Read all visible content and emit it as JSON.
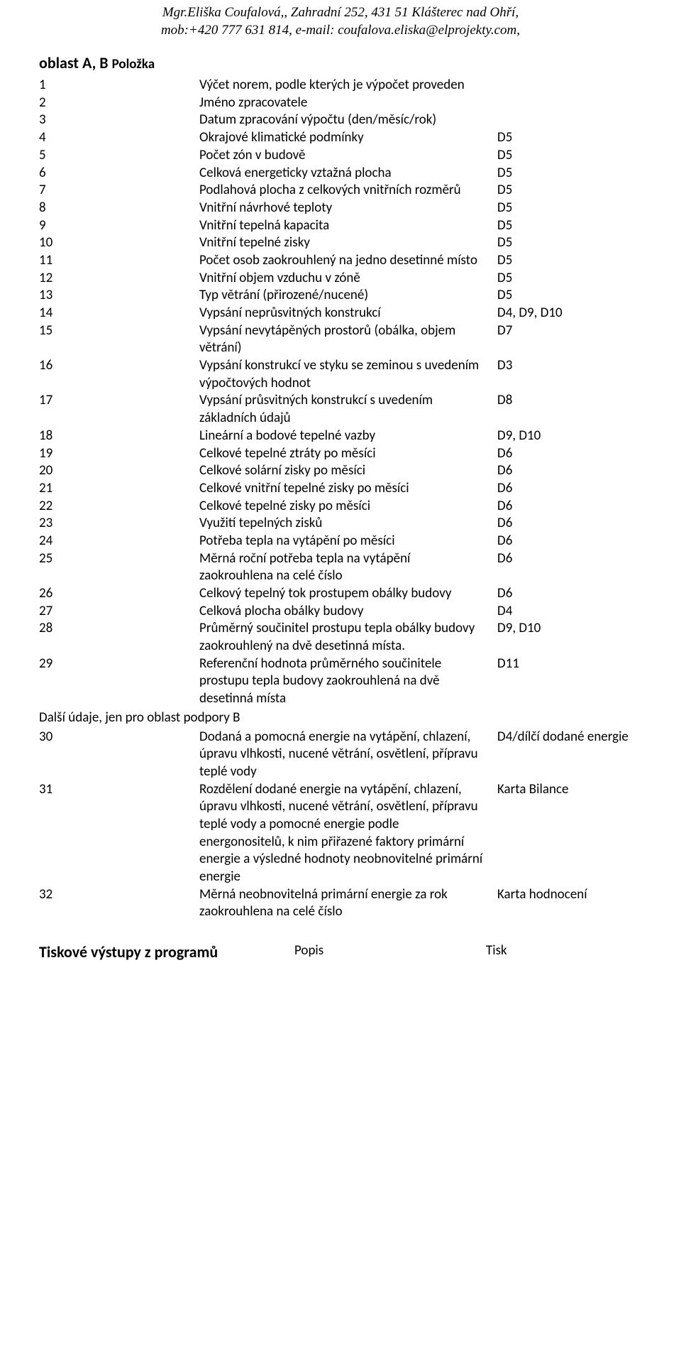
{
  "header": {
    "line1": "Mgr.Eliška Coufalová,, Zahradní 252, 431 51 Klášterec nad Ohří,",
    "line2": "mob:+420 777 631 814, e-mail: coufalova.eliska@elprojekty.com,"
  },
  "section": {
    "prefix": "oblast A, B ",
    "polozka": "Položka"
  },
  "rows": [
    {
      "n": "1",
      "d": "Výčet norem, podle kterých je výpočet proveden",
      "t": ""
    },
    {
      "n": "2",
      "d": "Jméno zpracovatele",
      "t": ""
    },
    {
      "n": "3",
      "d": "Datum zpracování výpočtu (den/měsíc/rok)",
      "t": ""
    },
    {
      "n": "4",
      "d": "Okrajové klimatické podmínky",
      "t": "D5"
    },
    {
      "n": "5",
      "d": "Počet zón v budově",
      "t": "D5"
    },
    {
      "n": "6",
      "d": "Celková energeticky vztažná plocha",
      "t": "D5"
    },
    {
      "n": "7",
      "d": "Podlahová plocha z celkových vnitřních rozměrů",
      "t": "D5"
    },
    {
      "n": "8",
      "d": "Vnitřní návrhové teploty",
      "t": "D5"
    },
    {
      "n": "9",
      "d": "Vnitřní tepelná kapacita",
      "t": "D5"
    },
    {
      "n": "10",
      "d": "Vnitřní tepelné zisky",
      "t": "D5"
    },
    {
      "n": "11",
      "d": "Počet osob zaokrouhlený na jedno desetinné místo",
      "t": "D5"
    },
    {
      "n": "12",
      "d": "Vnitřní objem vzduchu v zóně",
      "t": "D5"
    },
    {
      "n": "13",
      "d": "Typ větrání (přirozené/nucené)",
      "t": "D5"
    },
    {
      "n": "14",
      "d": "Vypsání neprůsvitných konstrukcí",
      "t": "D4, D9, D10"
    },
    {
      "n": "15",
      "d": "Vypsání nevytápěných prostorů (obálka, objem větrání)",
      "t": "D7"
    },
    {
      "n": "16",
      "d": "Vypsání konstrukcí ve styku se zeminou s uvedením výpočtových hodnot",
      "t": "D3"
    },
    {
      "n": "17",
      "d": "Vypsání průsvitných konstrukcí s uvedením základních údajů",
      "t": "D8"
    },
    {
      "n": "18",
      "d": "Lineární a bodové tepelné vazby",
      "t": "D9, D10"
    },
    {
      "n": "19",
      "d": "Celkové tepelné ztráty po měsíci",
      "t": "D6"
    },
    {
      "n": "20",
      "d": "Celkové solární zisky po měsíci",
      "t": "D6"
    },
    {
      "n": "21",
      "d": "Celkové vnitřní tepelné zisky po měsíci",
      "t": "D6"
    },
    {
      "n": "22",
      "d": "Celkové tepelné zisky po měsíci",
      "t": "D6"
    },
    {
      "n": "23",
      "d": "Využití tepelných zisků",
      "t": "D6"
    },
    {
      "n": "24",
      "d": "Potřeba tepla na vytápění po měsíci",
      "t": "D6"
    },
    {
      "n": "25",
      "d": "Měrná roční potřeba tepla na vytápění zaokrouhlena na celé číslo",
      "t": "D6"
    },
    {
      "n": "26",
      "d": "Celkový tepelný tok prostupem obálky budovy",
      "t": "D6"
    },
    {
      "n": "27",
      "d": "Celková plocha obálky budovy",
      "t": "D4"
    },
    {
      "n": "28",
      "d": "Průměrný součinitel prostupu tepla obálky budovy zaokrouhlený na dvě desetinná místa.",
      "t": "D9, D10"
    },
    {
      "n": "29",
      "d": "Referenční hodnota průměrného součinitele prostupu tepla budovy zaokrouhlená na dvě desetinná místa",
      "t": "D11"
    }
  ],
  "subheader": "Další údaje, jen pro oblast podpory B",
  "rows2": [
    {
      "n": "30",
      "d": "Dodaná a pomocná energie na vytápění, chlazení, úpravu vlhkosti, nucené větrání, osvětlení, přípravu teplé vody",
      "t": "D4/dílčí dodané energie"
    },
    {
      "n": "31",
      "d": "Rozdělení dodané energie na vytápění, chlazení, úpravu vlhkosti, nucené větrání, osvětlení, přípravu teplé vody a pomocné energie podle energonositelů, k nim přiřazené faktory primární energie a výsledné hodnoty neobnovitelné primární energie",
      "t": "Karta Bilance"
    },
    {
      "n": "32",
      "d": "Měrná neobnovitelná primární energie za rok zaokrouhlena na celé číslo",
      "t": "Karta hodnocení"
    }
  ],
  "footer": {
    "title": "Tiskové výstupy z programů",
    "c2": "Popis",
    "c3": "Tisk"
  }
}
